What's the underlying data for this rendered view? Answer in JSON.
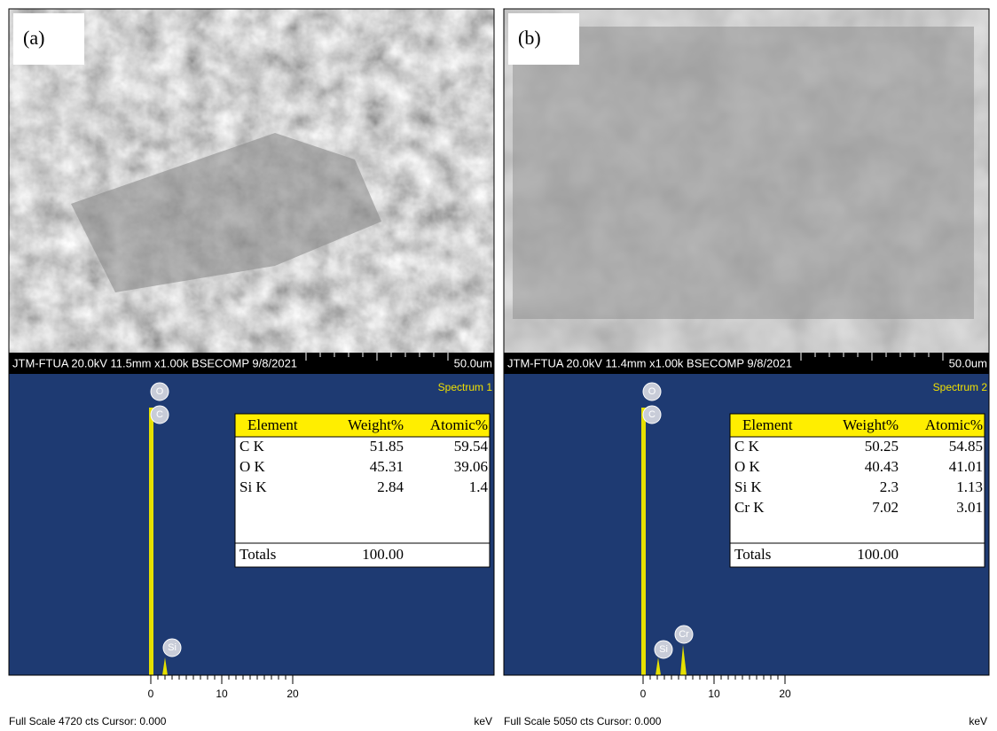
{
  "panels": [
    {
      "label": "(a)",
      "caption": "JTM-FTUA 20.0kV 11.5mm x1.00k BSECOMP 9/8/2021",
      "scale": "50.0um",
      "spectrum_name": "Spectrum 1",
      "peaks": [
        "O",
        "C",
        "Si"
      ],
      "table": {
        "header": [
          "Element",
          "Weight%",
          "Atomic%"
        ],
        "rows": [
          [
            "C K",
            "51.85",
            "59.54"
          ],
          [
            "O K",
            "45.31",
            "39.06"
          ],
          [
            "Si K",
            "2.84",
            "1.4"
          ]
        ],
        "totals": [
          "Totals",
          "100.00"
        ]
      },
      "axis_ticks": [
        0,
        10,
        20
      ],
      "full_scale": "Full Scale 4720 cts Cursor: 0.000",
      "unit": "keV"
    },
    {
      "label": "(b)",
      "caption": "JTM-FTUA 20.0kV 11.4mm x1.00k BSECOMP 9/8/2021",
      "scale": "50.0um",
      "spectrum_name": "Spectrum 2",
      "peaks": [
        "O",
        "C",
        "Si",
        "Cr"
      ],
      "table": {
        "header": [
          "Element",
          "Weight%",
          "Atomic%"
        ],
        "rows": [
          [
            "C K",
            "50.25",
            "54.85"
          ],
          [
            "O K",
            "40.43",
            "41.01"
          ],
          [
            "Si K",
            "2.3",
            "1.13"
          ],
          [
            "Cr K",
            "7.02",
            "3.01"
          ]
        ],
        "totals": [
          "Totals",
          "100.00"
        ]
      },
      "axis_ticks": [
        0,
        10,
        20
      ],
      "full_scale": "Full Scale 5050 cts Cursor: 0.000",
      "unit": "keV"
    }
  ]
}
